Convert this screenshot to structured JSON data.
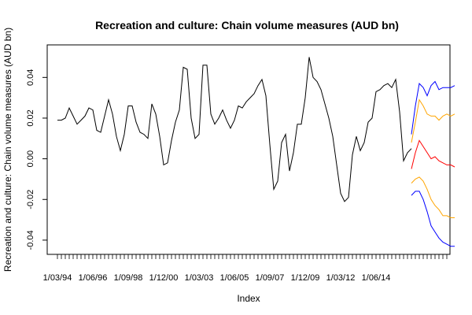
{
  "chart_data": {
    "type": "line",
    "title": "Recreation and culture: Chain volume measures (AUD bn)",
    "xlabel": "Index",
    "ylabel": "Recreation and culture: Chain volume measures (AUD bn)",
    "x_tick_labels": [
      "1/03/94",
      "1/06/96",
      "1/09/98",
      "1/12/00",
      "1/03/03",
      "1/06/05",
      "1/09/07",
      "1/12/09",
      "1/03/12",
      "1/06/14"
    ],
    "y_ticks": [
      -0.04,
      -0.02,
      0.0,
      0.02,
      0.04
    ],
    "y_tick_labels": [
      "-0.04",
      "-0.02",
      "0.00",
      "0.02",
      "0.04"
    ],
    "ylim": [
      -0.047,
      0.056
    ],
    "n_observations": 100,
    "grid": false,
    "series": [
      {
        "color": "#000000",
        "values": [
          0.019,
          0.019,
          0.02,
          0.025,
          0.021,
          0.017,
          0.019,
          0.021,
          0.025,
          0.024,
          0.014,
          0.013,
          0.021,
          0.029,
          0.022,
          0.011,
          0.004,
          0.012,
          0.026,
          0.026,
          0.018,
          0.013,
          0.012,
          0.01,
          0.027,
          0.022,
          0.011,
          -0.003,
          -0.002,
          0.009,
          0.018,
          0.024,
          0.045,
          0.044,
          0.02,
          0.01,
          0.012,
          0.046,
          0.046,
          0.022,
          0.017,
          0.02,
          0.024,
          0.019,
          0.015,
          0.019,
          0.026,
          0.025,
          0.028,
          0.03,
          0.032,
          0.036,
          0.039,
          0.031,
          0.007,
          -0.015,
          -0.011,
          0.008,
          0.012,
          -0.006,
          0.003,
          0.017,
          0.017,
          0.03,
          0.05,
          0.04,
          0.038,
          0.034,
          0.027,
          0.02,
          0.011,
          -0.003,
          -0.017,
          -0.021,
          -0.019,
          0.002,
          0.011,
          0.004,
          0.008,
          0.018,
          0.02,
          0.033,
          0.034,
          0.036,
          0.037,
          0.035,
          0.039,
          0.023,
          -0.001,
          0.003,
          0.005
        ]
      },
      {
        "color": "#0000ff",
        "x_start": 90,
        "values": [
          0.012,
          0.026,
          0.037,
          0.035,
          0.031,
          0.036,
          0.038,
          0.034,
          0.035,
          0.035,
          0.035,
          0.036
        ]
      },
      {
        "color": "#ffa500",
        "x_start": 90,
        "values": [
          0.008,
          0.018,
          0.029,
          0.026,
          0.022,
          0.021,
          0.021,
          0.019,
          0.021,
          0.022,
          0.021,
          0.022
        ]
      },
      {
        "color": "#ff0000",
        "x_start": 90,
        "values": [
          -0.005,
          0.003,
          0.009,
          0.006,
          0.003,
          0.0,
          0.001,
          -0.001,
          -0.002,
          -0.003,
          -0.003,
          -0.004
        ]
      },
      {
        "color": "#ffa500",
        "x_start": 90,
        "values": [
          -0.012,
          -0.01,
          -0.009,
          -0.011,
          -0.015,
          -0.02,
          -0.023,
          -0.025,
          -0.028,
          -0.028,
          -0.029,
          -0.029
        ]
      },
      {
        "color": "#0000ff",
        "x_start": 90,
        "values": [
          -0.018,
          -0.016,
          -0.016,
          -0.02,
          -0.026,
          -0.033,
          -0.036,
          -0.039,
          -0.041,
          -0.042,
          -0.043,
          -0.043
        ]
      }
    ]
  }
}
